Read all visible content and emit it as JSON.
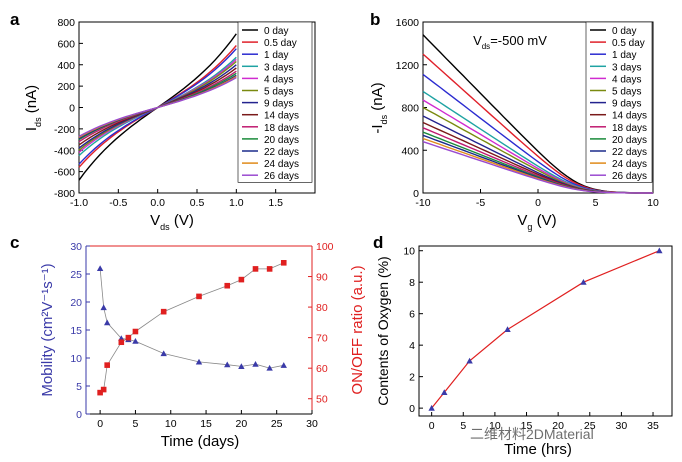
{
  "watermark": "二维材料2DMaterial",
  "chart_data": [
    {
      "id": "a",
      "panel_label": "a",
      "type": "line",
      "xlabel_main": "V",
      "xlabel_sub": "ds",
      "xlabel_unit": " (V)",
      "ylabel_main": "I",
      "ylabel_sub": "ds",
      "ylabel_unit": " (nA)",
      "xlim": [
        -1.0,
        2.0
      ],
      "ylim": [
        -800,
        800
      ],
      "xticks": [
        -1.0,
        -0.5,
        0.0,
        0.5,
        1.0,
        1.5
      ],
      "yticks": [
        -800,
        -600,
        -400,
        -200,
        0,
        200,
        400,
        600,
        800
      ],
      "legend_position": "top-right",
      "series": [
        {
          "name": "0 day",
          "color": "#000000",
          "x": [
            -1,
            1
          ],
          "y": [
            -680,
            690
          ]
        },
        {
          "name": "0.5 day",
          "color": "#e0202a",
          "x": [
            -1,
            1
          ],
          "y": [
            -560,
            580
          ]
        },
        {
          "name": "1 day",
          "color": "#2b2bd0",
          "x": [
            -1,
            1
          ],
          "y": [
            -530,
            550
          ]
        },
        {
          "name": "3 days",
          "color": "#1fa3a3",
          "x": [
            -1,
            1
          ],
          "y": [
            -450,
            470
          ]
        },
        {
          "name": "4 days",
          "color": "#d02bd0",
          "x": [
            -1,
            1
          ],
          "y": [
            -420,
            450
          ]
        },
        {
          "name": "5 days",
          "color": "#7a8a10",
          "x": [
            -1,
            1
          ],
          "y": [
            -400,
            430
          ]
        },
        {
          "name": "9 days",
          "color": "#23238e",
          "x": [
            -1,
            1
          ],
          "y": [
            -380,
            400
          ]
        },
        {
          "name": "14 days",
          "color": "#7a1a1a",
          "x": [
            -1,
            1
          ],
          "y": [
            -350,
            370
          ]
        },
        {
          "name": "18 days",
          "color": "#c01a70",
          "x": [
            -1,
            1
          ],
          "y": [
            -320,
            340
          ]
        },
        {
          "name": "20 days",
          "color": "#1a8a3a",
          "x": [
            -1,
            1
          ],
          "y": [
            -300,
            320
          ]
        },
        {
          "name": "22 days",
          "color": "#1a2a8a",
          "x": [
            -1,
            1
          ],
          "y": [
            -290,
            300
          ]
        },
        {
          "name": "24 days",
          "color": "#e08a1a",
          "x": [
            -1,
            1
          ],
          "y": [
            -280,
            290
          ]
        },
        {
          "name": "26 days",
          "color": "#9a4ad0",
          "x": [
            -1,
            1
          ],
          "y": [
            -270,
            280
          ]
        }
      ]
    },
    {
      "id": "b",
      "panel_label": "b",
      "type": "line",
      "annotation_main": "V",
      "annotation_sub": "ds",
      "annotation_rest": "=-500 mV",
      "xlabel_main": "V",
      "xlabel_sub": "g",
      "xlabel_unit": " (V)",
      "ylabel_main": "-I",
      "ylabel_sub": "ds",
      "ylabel_unit": " (nA)",
      "xlim": [
        -10,
        10
      ],
      "ylim": [
        0,
        1600
      ],
      "xticks": [
        -10,
        -5,
        0,
        5,
        10
      ],
      "yticks": [
        0,
        400,
        800,
        1200,
        1600
      ],
      "legend_position": "top-right",
      "series": [
        {
          "name": "0 day",
          "color": "#000000",
          "i0": 1480
        },
        {
          "name": "0.5 day",
          "color": "#e0202a",
          "i0": 1300
        },
        {
          "name": "1 day",
          "color": "#2b2bd0",
          "i0": 1110
        },
        {
          "name": "3 days",
          "color": "#1fa3a3",
          "i0": 950
        },
        {
          "name": "4 days",
          "color": "#d02bd0",
          "i0": 870
        },
        {
          "name": "5 days",
          "color": "#7a8a10",
          "i0": 800
        },
        {
          "name": "9 days",
          "color": "#23238e",
          "i0": 720
        },
        {
          "name": "14 days",
          "color": "#7a1a1a",
          "i0": 660
        },
        {
          "name": "18 days",
          "color": "#c01a70",
          "i0": 610
        },
        {
          "name": "20 days",
          "color": "#1a8a3a",
          "i0": 570
        },
        {
          "name": "22 days",
          "color": "#1a2a8a",
          "i0": 540
        },
        {
          "name": "24 days",
          "color": "#e08a1a",
          "i0": 510
        },
        {
          "name": "26 days",
          "color": "#9a4ad0",
          "i0": 480
        }
      ]
    },
    {
      "id": "c",
      "panel_label": "c",
      "type": "line",
      "xlabel": "Time (days)",
      "ylabel_left": "Mobility (cm²V⁻¹s⁻¹)",
      "ylabel_right": "ON/OFF ratio (a.u.)",
      "xlim": [
        -2,
        30
      ],
      "ylim_left": [
        0,
        30
      ],
      "ylim_right": [
        45,
        100
      ],
      "xticks": [
        0,
        5,
        10,
        15,
        20,
        25,
        30
      ],
      "yticks_left": [
        0,
        5,
        10,
        15,
        20,
        25,
        30
      ],
      "yticks_right": [
        50,
        60,
        70,
        80,
        90,
        100
      ],
      "colors": {
        "left": "#3a3aa8",
        "right": "#e02020"
      },
      "series": [
        {
          "name": "Mobility",
          "axis": "left",
          "marker": "triangle",
          "color": "#3a3aa8",
          "x": [
            0,
            0.5,
            1,
            3,
            4,
            5,
            9,
            14,
            18,
            20,
            22,
            24,
            26
          ],
          "y": [
            26,
            19,
            16.3,
            13.5,
            13.3,
            13.0,
            10.8,
            9.3,
            8.8,
            8.5,
            8.9,
            8.2,
            8.7
          ]
        },
        {
          "name": "ON/OFF ratio",
          "axis": "right",
          "marker": "square",
          "color": "#e02020",
          "x": [
            0,
            0.5,
            1,
            3,
            4,
            5,
            9,
            14,
            18,
            20,
            22,
            24,
            26
          ],
          "y": [
            52,
            53,
            61,
            68.5,
            70,
            72,
            78.5,
            83.5,
            87,
            89,
            92.5,
            92.5,
            94.5
          ]
        }
      ]
    },
    {
      "id": "d",
      "panel_label": "d",
      "type": "line",
      "xlabel": "Time (hrs)",
      "ylabel": "Contents of Oxygen (%)",
      "xlim": [
        -2,
        38
      ],
      "ylim": [
        -0.5,
        10.3
      ],
      "xticks": [
        0,
        5,
        10,
        15,
        20,
        25,
        30,
        35
      ],
      "yticks": [
        0,
        2,
        4,
        6,
        8,
        10
      ],
      "series": [
        {
          "name": "Oxygen",
          "marker": "triangle",
          "color": "#3a3aa8",
          "line_color": "#e02020",
          "x": [
            0,
            2,
            6,
            12,
            24,
            36
          ],
          "y": [
            0,
            1,
            3,
            5,
            8,
            10
          ]
        }
      ]
    }
  ]
}
